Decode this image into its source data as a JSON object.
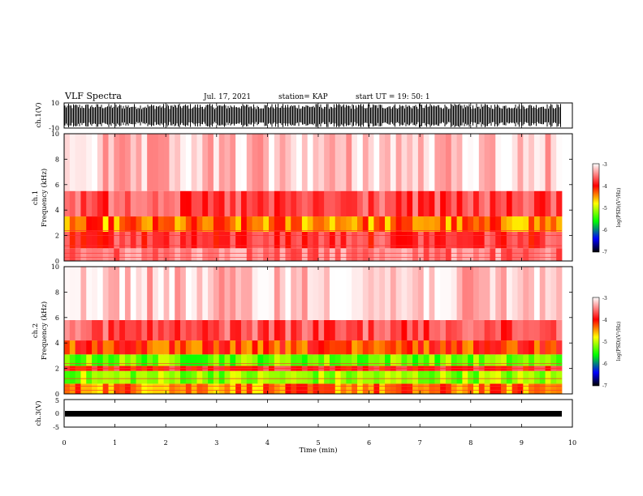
{
  "header": {
    "title": "VLF Spectra",
    "date": "Jul. 17, 2021",
    "station": "station= KAP",
    "start": "start UT =  19: 50: 1"
  },
  "colors": {
    "spectrogram_scale": [
      "#ffffff",
      "#ff0000",
      "#ffff00",
      "#00ff00",
      "#0000ff",
      "#000000"
    ]
  },
  "chart_data": [
    {
      "type": "line",
      "panel": "ch.1 waveform",
      "ylabel": "ch.1(V)",
      "ylim": [
        -10,
        10
      ],
      "yticks": [
        "10",
        "-10"
      ],
      "xlim": [
        0,
        10
      ],
      "description": "dense saturated waveform filling most of the range"
    },
    {
      "type": "heatmap",
      "panel": "ch.1 spectrogram",
      "ylabel_lines": [
        "ch.1",
        "Frequency (kHz)"
      ],
      "ylim": [
        0,
        10
      ],
      "yticks": [
        "0",
        "2",
        "4",
        "6",
        "8",
        "10"
      ],
      "xlim": [
        0,
        10
      ],
      "colorbar": {
        "label": "log(PSD)(V²/Hz)",
        "range": [
          -7,
          -3
        ],
        "ticks": [
          "-3",
          "-4",
          "-5",
          "-6",
          "-7"
        ]
      },
      "bands": [
        {
          "f_min": 0.0,
          "f_max": 1.0,
          "level": -3.5
        },
        {
          "f_min": 1.0,
          "f_max": 2.3,
          "level": -3.8
        },
        {
          "f_min": 2.3,
          "f_max": 3.5,
          "level": -4.3
        },
        {
          "f_min": 3.5,
          "f_max": 5.5,
          "level": -3.7
        },
        {
          "f_min": 5.5,
          "f_max": 10.0,
          "level": -3.2
        }
      ]
    },
    {
      "type": "heatmap",
      "panel": "ch.2 spectrogram",
      "ylabel_lines": [
        "ch.2",
        "Frequency (kHz)"
      ],
      "ylim": [
        0,
        10
      ],
      "yticks": [
        "0",
        "2",
        "4",
        "6",
        "8",
        "10"
      ],
      "xlim": [
        0,
        10
      ],
      "colorbar": {
        "label": "log(PSD)(V²/Hz)",
        "range": [
          -7,
          -3
        ],
        "ticks": [
          "-3",
          "-4",
          "-5",
          "-6",
          "-7"
        ]
      },
      "bands": [
        {
          "f_min": 0.0,
          "f_max": 0.8,
          "level": -4.3
        },
        {
          "f_min": 0.8,
          "f_max": 1.8,
          "level": -4.9
        },
        {
          "f_min": 1.8,
          "f_max": 2.2,
          "level": -3.9
        },
        {
          "f_min": 2.2,
          "f_max": 3.1,
          "level": -5.0
        },
        {
          "f_min": 3.1,
          "f_max": 4.2,
          "level": -4.1
        },
        {
          "f_min": 4.2,
          "f_max": 5.8,
          "level": -3.7
        },
        {
          "f_min": 5.8,
          "f_max": 10.0,
          "level": -3.2
        }
      ]
    },
    {
      "type": "line",
      "panel": "ch.3 waveform",
      "ylabel": "ch.3(V)",
      "ylim": [
        -5,
        5
      ],
      "yticks": [
        "5",
        "0",
        "-5"
      ],
      "xlim": [
        0,
        10
      ],
      "baseline": -1,
      "amplitude": 0.5
    }
  ],
  "xaxis": {
    "label": "Time (min)",
    "ticks": [
      "0",
      "1",
      "2",
      "3",
      "4",
      "5",
      "6",
      "7",
      "8",
      "9",
      "10"
    ]
  }
}
